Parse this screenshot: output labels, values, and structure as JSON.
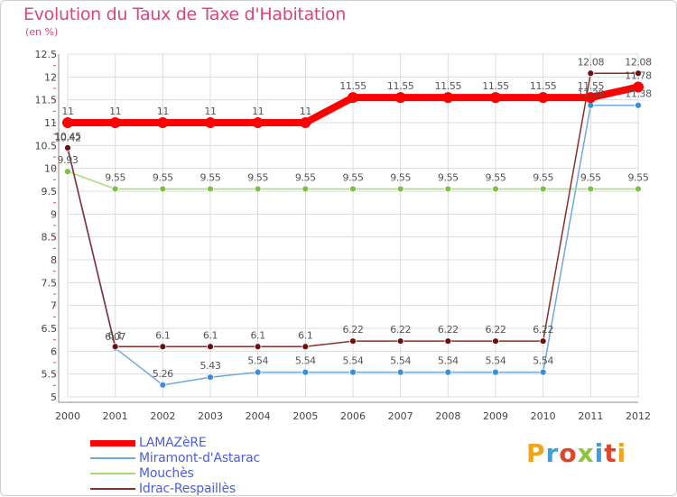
{
  "header": {
    "title": "Evolution du Taux de Taxe d'Habitation",
    "subtitle": "(en %)"
  },
  "logo": {
    "text": "Proxiti"
  },
  "chart_data": {
    "type": "line",
    "title": "Evolution du Taux de Taxe d'Habitation",
    "ylabel": "(en %)",
    "xlabel": "",
    "ylim": [
      5,
      12.5
    ],
    "y_ticks": [
      "5",
      "5.5",
      "6",
      "6.5",
      "7",
      "7.5",
      "8",
      "8.5",
      "9",
      "9.5",
      "10",
      "10.5",
      "11",
      "11.5",
      "12",
      "12.5"
    ],
    "x": [
      "2000",
      "2001",
      "2002",
      "2003",
      "2004",
      "2005",
      "2006",
      "2007",
      "2008",
      "2009",
      "2010",
      "2011",
      "2012"
    ],
    "grid": true,
    "legend_position": "bottom-left",
    "series": [
      {
        "name": "LAMAZèRE",
        "color": "#ff0000",
        "values": [
          11,
          11,
          11,
          11,
          11,
          11,
          11.55,
          11.55,
          11.55,
          11.55,
          11.55,
          11.55,
          11.78
        ],
        "labels": [
          "11",
          "11",
          "11",
          "11",
          "11",
          "11",
          "11.55",
          "11.55",
          "11.55",
          "11.55",
          "11.55",
          "11.55",
          "11.78"
        ]
      },
      {
        "name": "Miramont-d'Astarac",
        "color": "#6fa8dc",
        "marker": "#3a8fd8",
        "values": [
          10.42,
          6.07,
          5.26,
          5.43,
          5.54,
          5.54,
          5.54,
          5.54,
          5.54,
          5.54,
          5.54,
          11.38,
          11.38
        ],
        "labels": [
          "10.42",
          "6.07",
          "5.26",
          "5.43",
          "5.54",
          "5.54",
          "5.54",
          "5.54",
          "5.54",
          "5.54",
          "5.54",
          "11.38",
          "11.38"
        ]
      },
      {
        "name": "Mouchès",
        "color": "#a3d977",
        "marker": "#7cc242",
        "values": [
          9.93,
          9.55,
          9.55,
          9.55,
          9.55,
          9.55,
          9.55,
          9.55,
          9.55,
          9.55,
          9.55,
          9.55,
          9.55
        ],
        "labels": [
          "9.93",
          "9.55",
          "9.55",
          "9.55",
          "9.55",
          "9.55",
          "9.55",
          "9.55",
          "9.55",
          "9.55",
          "9.55",
          "9.55",
          "9.55"
        ]
      },
      {
        "name": "Idrac-Respaillès",
        "color": "#8b2e2e",
        "marker": "#6b1010",
        "values": [
          10.45,
          6.1,
          6.1,
          6.1,
          6.1,
          6.1,
          6.22,
          6.22,
          6.22,
          6.22,
          6.22,
          12.08,
          12.08
        ],
        "labels": [
          "10.45",
          "6.1",
          "6.1",
          "6.1",
          "6.1",
          "6.1",
          "6.22",
          "6.22",
          "6.22",
          "6.22",
          "6.22",
          "12.08",
          "12.08"
        ]
      }
    ]
  }
}
